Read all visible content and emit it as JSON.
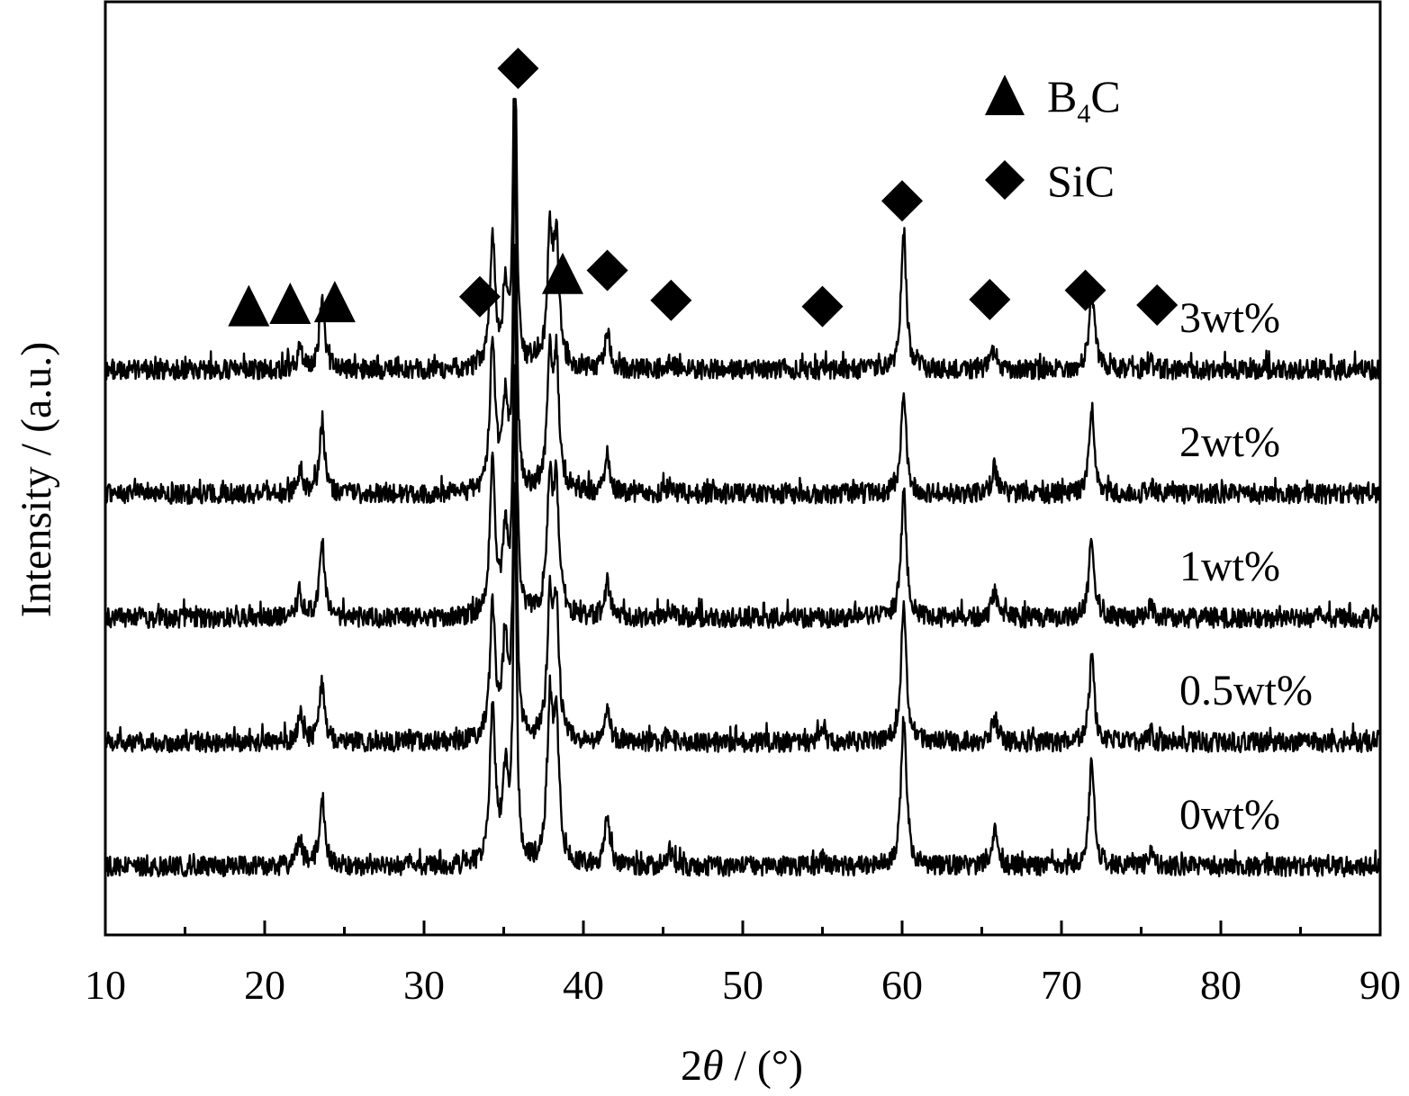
{
  "chart_data": {
    "type": "line",
    "xlabel": "2θ / (°)",
    "xlabel_parts": {
      "prefix": "2",
      "symbol": "θ",
      "suffix": " / (°)"
    },
    "ylabel": "Intensity / (a.u.)",
    "xlim": [
      10,
      90
    ],
    "x_ticks": [
      10,
      20,
      30,
      40,
      50,
      60,
      70,
      80,
      90
    ],
    "x_minor_ticks": [
      15,
      25,
      35,
      45,
      55,
      65,
      75,
      85
    ],
    "y_ticks_shown": false,
    "grid": false,
    "stacked_offset_traces": true,
    "legend": {
      "placement": "top-right",
      "entries": [
        {
          "marker": "triangle",
          "label": "B",
          "subscript": "4",
          "label_suffix": "C",
          "full": "B4C"
        },
        {
          "marker": "diamond",
          "label": "SiC",
          "full": "SiC"
        }
      ]
    },
    "series": [
      {
        "name": "3wt%",
        "baseline": 4,
        "peaks": [
          [
            22.2,
            0.15
          ],
          [
            23.6,
            0.55
          ],
          [
            34.3,
            1.0
          ],
          [
            35.1,
            0.55
          ],
          [
            35.7,
            2.9
          ],
          [
            37.9,
            1.0
          ],
          [
            38.3,
            0.95
          ],
          [
            41.5,
            0.28
          ],
          [
            45.4,
            0.06
          ],
          [
            60.1,
            1.05
          ],
          [
            65.8,
            0.18
          ],
          [
            71.9,
            0.65
          ],
          [
            75.6,
            0.06
          ]
        ]
      },
      {
        "name": "2wt%",
        "baseline": 3,
        "peaks": [
          [
            22.2,
            0.15
          ],
          [
            23.6,
            0.55
          ],
          [
            34.3,
            1.2
          ],
          [
            35.1,
            0.65
          ],
          [
            35.7,
            2.9
          ],
          [
            37.9,
            1.0
          ],
          [
            38.3,
            1.0
          ],
          [
            41.5,
            0.3
          ],
          [
            45.4,
            0.06
          ],
          [
            60.1,
            0.75
          ],
          [
            65.8,
            0.2
          ],
          [
            71.9,
            0.62
          ],
          [
            75.6,
            0.06
          ]
        ]
      },
      {
        "name": "1wt%",
        "baseline": 2,
        "peaks": [
          [
            22.2,
            0.2
          ],
          [
            23.6,
            0.6
          ],
          [
            34.3,
            1.2
          ],
          [
            35.1,
            0.65
          ],
          [
            35.7,
            2.9
          ],
          [
            37.9,
            1.05
          ],
          [
            38.3,
            0.95
          ],
          [
            41.5,
            0.28
          ],
          [
            45.4,
            0.08
          ],
          [
            60.1,
            1.0
          ],
          [
            65.8,
            0.22
          ],
          [
            71.9,
            0.65
          ],
          [
            75.6,
            0.08
          ]
        ]
      },
      {
        "name": "0.5wt%",
        "baseline": 1,
        "peaks": [
          [
            22.2,
            0.2
          ],
          [
            23.6,
            0.45
          ],
          [
            34.3,
            1.05
          ],
          [
            35.1,
            0.75
          ],
          [
            35.7,
            2.9
          ],
          [
            37.9,
            1.05
          ],
          [
            38.3,
            1.0
          ],
          [
            41.5,
            0.25
          ],
          [
            45.4,
            0.06
          ],
          [
            55.0,
            0.1
          ],
          [
            60.1,
            1.1
          ],
          [
            65.8,
            0.2
          ],
          [
            71.9,
            0.65
          ],
          [
            75.6,
            0.06
          ]
        ]
      },
      {
        "name": "0wt%",
        "baseline": 0,
        "peaks": [
          [
            22.2,
            0.2
          ],
          [
            23.6,
            0.55
          ],
          [
            34.3,
            1.3
          ],
          [
            35.1,
            0.7
          ],
          [
            35.7,
            3.0
          ],
          [
            37.9,
            1.2
          ],
          [
            38.3,
            1.1
          ],
          [
            41.5,
            0.4
          ],
          [
            45.4,
            0.12
          ],
          [
            55.0,
            0.06
          ],
          [
            60.1,
            1.2
          ],
          [
            65.8,
            0.28
          ],
          [
            71.9,
            0.85
          ],
          [
            75.6,
            0.1
          ]
        ]
      }
    ],
    "annotations": {
      "B4C": [
        19.0,
        21.6,
        24.4,
        38.7
      ],
      "SiC": [
        33.5,
        35.9,
        41.5,
        45.5,
        55.0,
        60.0,
        65.5,
        71.5,
        76.0
      ]
    }
  }
}
